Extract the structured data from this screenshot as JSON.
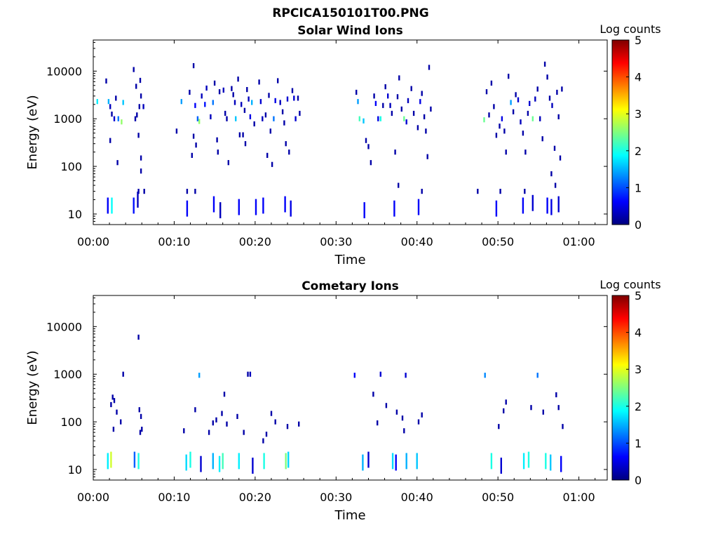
{
  "figure_title": "RPCICA150101T00.PNG",
  "colors": {
    "colormap": [
      "#00007f",
      "#0000ff",
      "#007fff",
      "#00ffff",
      "#7fff7f",
      "#ffff00",
      "#ff7f00",
      "#ff0000",
      "#7f0000"
    ],
    "axis": "#000000",
    "background": "#ffffff"
  },
  "chart_data": [
    {
      "type": "heatmap",
      "title": "Solar Wind Ions",
      "xlabel": "Time",
      "ylabel": "Energy (eV)",
      "colorbar_label": "Log counts",
      "colorbar_ticks": [
        "0",
        "1",
        "2",
        "3",
        "4",
        "5"
      ],
      "clim": [
        0,
        5
      ],
      "xlim": [
        0,
        63.5
      ],
      "x_unit": "minutes",
      "x_ticks": [
        0,
        10,
        20,
        30,
        40,
        50,
        60
      ],
      "x_tick_labels": [
        "00:00",
        "00:10",
        "00:20",
        "00:30",
        "00:40",
        "00:50",
        "01:00"
      ],
      "ylim": [
        6,
        45000
      ],
      "yscale": "log",
      "y_ticks": [
        10,
        100,
        1000,
        10000
      ],
      "y_tick_labels": [
        "10",
        "100",
        "1000",
        "10000"
      ],
      "cells": [
        [
          0.5,
          2300,
          1.8
        ],
        [
          1.6,
          6200,
          0.2
        ],
        [
          1.9,
          2300,
          1.5
        ],
        [
          2.1,
          1800,
          0.3
        ],
        [
          2.3,
          1250,
          0.2
        ],
        [
          2.1,
          350,
          0.2
        ],
        [
          2.6,
          1000,
          0.4
        ],
        [
          3.1,
          1000,
          1.2
        ],
        [
          3.5,
          860,
          2.6
        ],
        [
          3.7,
          2200,
          1.6
        ],
        [
          3.0,
          120,
          0.2
        ],
        [
          2.8,
          2700,
          0.2
        ],
        [
          5.0,
          10800,
          0.2
        ],
        [
          5.3,
          4800,
          0.2
        ],
        [
          5.8,
          6400,
          0.2
        ],
        [
          5.9,
          3000,
          0.2
        ],
        [
          5.7,
          1800,
          0.2
        ],
        [
          6.2,
          1800,
          0.3
        ],
        [
          5.6,
          450,
          0.2
        ],
        [
          5.9,
          150,
          0.2
        ],
        [
          5.9,
          80,
          0.2
        ],
        [
          6.3,
          30,
          0.2
        ],
        [
          5.6,
          30,
          0.2
        ],
        [
          5.4,
          1200,
          0.2
        ],
        [
          5.2,
          1000,
          0.2
        ],
        [
          10.3,
          550,
          0.2
        ],
        [
          10.9,
          2300,
          1.4
        ],
        [
          11.6,
          30,
          0.2
        ],
        [
          11.9,
          3600,
          0.2
        ],
        [
          12.4,
          13000,
          0.2
        ],
        [
          12.6,
          1900,
          0.6
        ],
        [
          12.9,
          1000,
          1.1
        ],
        [
          13.1,
          880,
          2.6
        ],
        [
          13.4,
          3000,
          0.3
        ],
        [
          12.2,
          170,
          0.2
        ],
        [
          12.4,
          430,
          0.2
        ],
        [
          12.6,
          30,
          0.2
        ],
        [
          12.7,
          280,
          0.2
        ],
        [
          13.8,
          2000,
          0.7
        ],
        [
          14.0,
          4400,
          0.3
        ],
        [
          14.5,
          1100,
          0.3
        ],
        [
          14.8,
          2200,
          1.2
        ],
        [
          15.0,
          5600,
          0.2
        ],
        [
          15.3,
          360,
          0.2
        ],
        [
          15.4,
          200,
          0.2
        ],
        [
          15.6,
          3700,
          0.2
        ],
        [
          16.1,
          4000,
          0.3
        ],
        [
          16.3,
          1300,
          0.2
        ],
        [
          16.5,
          1000,
          0.2
        ],
        [
          16.7,
          120,
          0.2
        ],
        [
          17.1,
          4300,
          0.2
        ],
        [
          17.3,
          3200,
          0.2
        ],
        [
          17.5,
          2200,
          0.3
        ],
        [
          17.6,
          1000,
          1.6
        ],
        [
          17.9,
          6800,
          0.2
        ],
        [
          18.1,
          460,
          0.2
        ],
        [
          18.3,
          2000,
          0.3
        ],
        [
          18.5,
          460,
          0.2
        ],
        [
          18.7,
          1500,
          0.2
        ],
        [
          18.8,
          300,
          0.2
        ],
        [
          19.0,
          4100,
          0.2
        ],
        [
          19.2,
          2600,
          0.3
        ],
        [
          19.4,
          1100,
          0.5
        ],
        [
          19.6,
          2200,
          1.5
        ],
        [
          19.9,
          780,
          0.2
        ],
        [
          20.5,
          5900,
          0.2
        ],
        [
          20.7,
          2300,
          0.4
        ],
        [
          20.9,
          1000,
          0.3
        ],
        [
          21.3,
          1200,
          0.2
        ],
        [
          21.5,
          170,
          0.2
        ],
        [
          21.7,
          3100,
          0.2
        ],
        [
          21.9,
          550,
          0.2
        ],
        [
          22.1,
          110,
          0.2
        ],
        [
          22.3,
          1000,
          1.2
        ],
        [
          22.5,
          2400,
          0.5
        ],
        [
          22.8,
          6300,
          0.2
        ],
        [
          23.1,
          2200,
          0.3
        ],
        [
          23.4,
          1400,
          0.2
        ],
        [
          23.6,
          820,
          0.2
        ],
        [
          23.8,
          300,
          0.2
        ],
        [
          24.0,
          2600,
          0.4
        ],
        [
          24.2,
          200,
          0.2
        ],
        [
          24.6,
          3900,
          0.2
        ],
        [
          24.8,
          2700,
          0.4
        ],
        [
          25.0,
          1000,
          0.4
        ],
        [
          25.3,
          2700,
          0.2
        ],
        [
          25.5,
          1300,
          0.2
        ],
        [
          32.5,
          3600,
          0.2
        ],
        [
          32.7,
          2300,
          1.4
        ],
        [
          32.9,
          1000,
          2.2
        ],
        [
          33.4,
          900,
          1.6
        ],
        [
          33.7,
          350,
          0.2
        ],
        [
          34.0,
          260,
          0.2
        ],
        [
          34.3,
          120,
          0.2
        ],
        [
          34.7,
          3000,
          0.2
        ],
        [
          34.9,
          2100,
          0.6
        ],
        [
          35.2,
          1000,
          0.5
        ],
        [
          35.5,
          1000,
          2.0
        ],
        [
          35.8,
          1900,
          0.2
        ],
        [
          36.1,
          4700,
          0.2
        ],
        [
          36.4,
          3000,
          0.4
        ],
        [
          36.7,
          1900,
          0.3
        ],
        [
          36.9,
          1300,
          0.2
        ],
        [
          37.3,
          200,
          0.2
        ],
        [
          37.6,
          2900,
          0.2
        ],
        [
          37.8,
          7200,
          0.2
        ],
        [
          38.1,
          1600,
          0.2
        ],
        [
          38.4,
          1000,
          2.4
        ],
        [
          38.7,
          860,
          0.4
        ],
        [
          38.9,
          2400,
          0.3
        ],
        [
          39.3,
          4300,
          0.2
        ],
        [
          39.6,
          1300,
          0.2
        ],
        [
          40.1,
          650,
          0.2
        ],
        [
          40.4,
          2300,
          0.5
        ],
        [
          40.6,
          3400,
          0.2
        ],
        [
          40.9,
          1100,
          0.2
        ],
        [
          41.1,
          550,
          0.2
        ],
        [
          41.3,
          160,
          0.2
        ],
        [
          41.5,
          12000,
          0.2
        ],
        [
          41.7,
          1600,
          0.2
        ],
        [
          48.3,
          950,
          2.4
        ],
        [
          48.6,
          3700,
          0.2
        ],
        [
          48.9,
          1200,
          0.2
        ],
        [
          49.2,
          5600,
          0.2
        ],
        [
          49.5,
          1800,
          0.2
        ],
        [
          49.8,
          450,
          0.2
        ],
        [
          50.2,
          700,
          0.2
        ],
        [
          50.5,
          1000,
          0.5
        ],
        [
          50.8,
          550,
          0.2
        ],
        [
          51.0,
          200,
          0.2
        ],
        [
          51.3,
          7800,
          0.2
        ],
        [
          51.6,
          2200,
          1.4
        ],
        [
          51.9,
          1400,
          0.2
        ],
        [
          52.2,
          3200,
          0.2
        ],
        [
          52.5,
          2500,
          0.4
        ],
        [
          52.8,
          860,
          0.3
        ],
        [
          53.1,
          500,
          0.2
        ],
        [
          53.4,
          200,
          0.2
        ],
        [
          53.7,
          1300,
          0.2
        ],
        [
          53.9,
          2100,
          0.4
        ],
        [
          54.3,
          1000,
          2.4
        ],
        [
          54.6,
          2600,
          0.3
        ],
        [
          54.9,
          4200,
          0.2
        ],
        [
          55.2,
          1000,
          0.3
        ],
        [
          55.5,
          380,
          0.2
        ],
        [
          55.8,
          14000,
          0.2
        ],
        [
          56.1,
          7500,
          0.2
        ],
        [
          56.4,
          2700,
          0.2
        ],
        [
          56.7,
          1900,
          0.3
        ],
        [
          57.0,
          240,
          0.2
        ],
        [
          57.3,
          3600,
          0.2
        ],
        [
          57.5,
          1100,
          0.2
        ],
        [
          57.7,
          150,
          0.2
        ],
        [
          57.9,
          4200,
          0.2
        ],
        [
          57.1,
          40,
          0.2
        ],
        [
          56.6,
          70,
          0.2
        ],
        [
          50.3,
          30,
          0.2
        ],
        [
          47.5,
          30,
          0.2
        ],
        [
          53.3,
          30,
          0.2
        ],
        [
          40.6,
          30,
          0.2
        ],
        [
          37.7,
          40,
          0.2
        ],
        [
          1.8,
          15,
          0.6
        ],
        [
          2.3,
          15,
          1.9
        ],
        [
          5.0,
          15,
          0.7
        ],
        [
          5.5,
          20,
          0.3
        ],
        [
          11.6,
          13,
          0.6
        ],
        [
          14.9,
          16,
          0.6
        ],
        [
          15.7,
          12,
          0.3
        ],
        [
          18.0,
          14,
          0.6
        ],
        [
          20.1,
          14,
          0.6
        ],
        [
          21.0,
          15,
          0.6
        ],
        [
          23.7,
          16,
          0.6
        ],
        [
          24.4,
          13,
          0.5
        ],
        [
          33.5,
          12,
          0.6
        ],
        [
          37.2,
          13,
          0.6
        ],
        [
          40.2,
          14,
          0.6
        ],
        [
          49.8,
          13,
          0.6
        ],
        [
          53.1,
          15,
          0.6
        ],
        [
          54.3,
          17,
          0.4
        ],
        [
          56.1,
          15,
          0.6
        ],
        [
          56.6,
          14,
          0.5
        ],
        [
          57.5,
          16,
          0.4
        ]
      ]
    },
    {
      "type": "heatmap",
      "title": "Cometary Ions",
      "xlabel": "Time",
      "ylabel": "Energy (eV)",
      "colorbar_label": "Log counts",
      "colorbar_ticks": [
        "0",
        "1",
        "2",
        "3",
        "4",
        "5"
      ],
      "clim": [
        0,
        5
      ],
      "xlim": [
        0,
        63.5
      ],
      "x_unit": "minutes",
      "x_ticks": [
        0,
        10,
        20,
        30,
        40,
        50,
        60
      ],
      "x_tick_labels": [
        "00:00",
        "00:10",
        "00:20",
        "00:30",
        "00:40",
        "00:50",
        "01:00"
      ],
      "ylim": [
        6,
        45000
      ],
      "yscale": "log",
      "y_ticks": [
        10,
        100,
        1000,
        10000
      ],
      "y_tick_labels": [
        "10",
        "100",
        "1000",
        "10000"
      ],
      "cells": [
        [
          5.6,
          6000,
          0.2
        ],
        [
          3.7,
          1000,
          0.2
        ],
        [
          13.1,
          950,
          1.4
        ],
        [
          19.4,
          1000,
          0.3
        ],
        [
          32.3,
          950,
          0.6
        ],
        [
          35.5,
          1000,
          0.4
        ],
        [
          38.6,
          950,
          0.4
        ],
        [
          48.4,
          950,
          1.3
        ],
        [
          54.9,
          950,
          1.2
        ],
        [
          2.2,
          230,
          0.2
        ],
        [
          2.4,
          330,
          0.2
        ],
        [
          2.6,
          280,
          0.2
        ],
        [
          2.5,
          70,
          0.2
        ],
        [
          2.9,
          160,
          0.2
        ],
        [
          3.4,
          100,
          0.2
        ],
        [
          5.7,
          180,
          0.2
        ],
        [
          5.9,
          130,
          0.2
        ],
        [
          6.0,
          70,
          0.2
        ],
        [
          5.8,
          60,
          0.2
        ],
        [
          11.2,
          65,
          0.2
        ],
        [
          12.6,
          180,
          0.2
        ],
        [
          14.3,
          60,
          0.2
        ],
        [
          14.8,
          95,
          0.2
        ],
        [
          15.2,
          110,
          0.2
        ],
        [
          15.9,
          150,
          0.2
        ],
        [
          16.2,
          380,
          0.2
        ],
        [
          16.5,
          90,
          0.2
        ],
        [
          17.8,
          130,
          0.2
        ],
        [
          18.6,
          60,
          0.2
        ],
        [
          19.1,
          1000,
          0.2
        ],
        [
          21.0,
          40,
          0.2
        ],
        [
          21.4,
          55,
          0.2
        ],
        [
          22.0,
          150,
          0.2
        ],
        [
          22.5,
          100,
          0.2
        ],
        [
          24.0,
          80,
          0.2
        ],
        [
          25.4,
          90,
          0.2
        ],
        [
          34.6,
          380,
          0.2
        ],
        [
          35.1,
          95,
          0.2
        ],
        [
          36.2,
          220,
          0.2
        ],
        [
          37.5,
          160,
          0.2
        ],
        [
          38.2,
          120,
          0.2
        ],
        [
          38.4,
          65,
          0.2
        ],
        [
          40.2,
          100,
          0.2
        ],
        [
          40.6,
          140,
          0.2
        ],
        [
          50.1,
          80,
          0.2
        ],
        [
          50.7,
          170,
          0.2
        ],
        [
          51.0,
          260,
          0.2
        ],
        [
          54.1,
          200,
          0.2
        ],
        [
          55.6,
          160,
          0.2
        ],
        [
          57.2,
          370,
          0.2
        ],
        [
          57.5,
          200,
          0.2
        ],
        [
          58.0,
          80,
          0.2
        ],
        [
          1.8,
          15,
          1.8
        ],
        [
          2.2,
          16,
          2.9
        ],
        [
          5.1,
          16,
          1.1
        ],
        [
          5.6,
          15,
          2.0
        ],
        [
          11.5,
          14,
          1.7
        ],
        [
          12.0,
          16,
          2.0
        ],
        [
          13.3,
          13,
          0.4
        ],
        [
          14.8,
          15,
          1.5
        ],
        [
          15.6,
          13,
          1.8
        ],
        [
          16.0,
          15,
          2.2
        ],
        [
          18.0,
          15,
          1.8
        ],
        [
          19.7,
          12,
          0.4
        ],
        [
          21.1,
          15,
          2.0
        ],
        [
          23.8,
          15,
          2.5
        ],
        [
          24.1,
          16,
          1.7
        ],
        [
          33.3,
          14,
          1.5
        ],
        [
          34.0,
          16,
          0.4
        ],
        [
          37.0,
          15,
          1.7
        ],
        [
          37.4,
          14,
          0.6
        ],
        [
          38.7,
          15,
          1.5
        ],
        [
          40.0,
          15,
          1.6
        ],
        [
          49.2,
          15,
          2.0
        ],
        [
          50.4,
          12,
          0.4
        ],
        [
          53.2,
          15,
          1.8
        ],
        [
          53.8,
          16,
          2.0
        ],
        [
          55.9,
          15,
          2.0
        ],
        [
          56.5,
          14,
          1.6
        ],
        [
          57.8,
          13,
          0.6
        ]
      ]
    }
  ]
}
